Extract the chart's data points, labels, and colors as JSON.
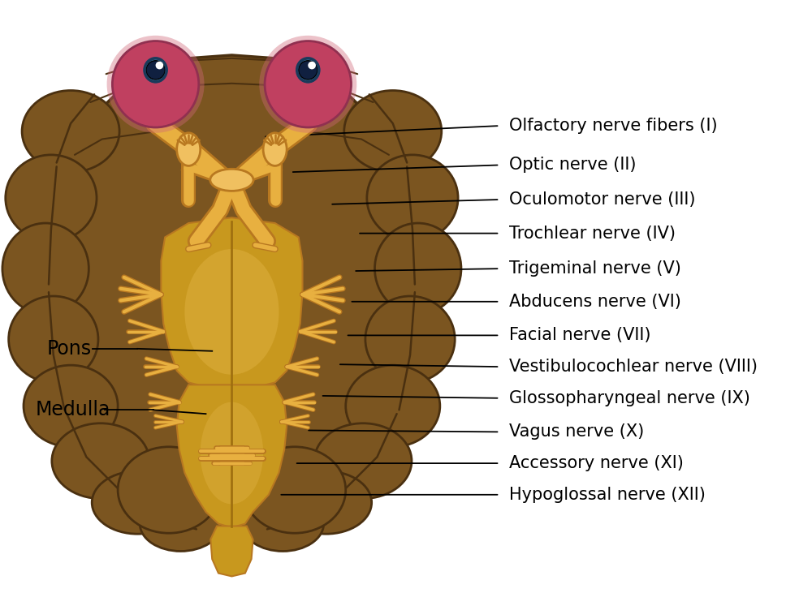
{
  "bg_color": "#ffffff",
  "brain_color": "#7B5520",
  "brain_mid": "#6B4818",
  "brain_dark": "#4A3010",
  "brain_light": "#8B6530",
  "nerve_color": "#E8B040",
  "nerve_light": "#F0C060",
  "nerve_dark": "#B87820",
  "pons_color": "#C8981E",
  "pons_light": "#DEB040",
  "pons_dark": "#A07010",
  "eye_body_color": "#C04060",
  "eye_body_dark": "#903050",
  "eye_iris_color": "#5090BB",
  "eye_iris_dark": "#2060A0",
  "eye_pupil_color": "#102040",
  "label_color": "#000000",
  "labels_right": [
    "Olfactory nerve fibers (I)",
    "Optic nerve (II)",
    "Oculomotor nerve (III)",
    "Trochlear nerve (IV)",
    "Trigeminal nerve (V)",
    "Abducens nerve (VI)",
    "Facial nerve (VII)",
    "Vestibulocochlear nerve (VIII)",
    "Glossopharyngeal nerve (IX)",
    "Vagus nerve (X)",
    "Accessory nerve (XI)",
    "Hypoglossal nerve (XII)"
  ],
  "label_fontsize": 15
}
